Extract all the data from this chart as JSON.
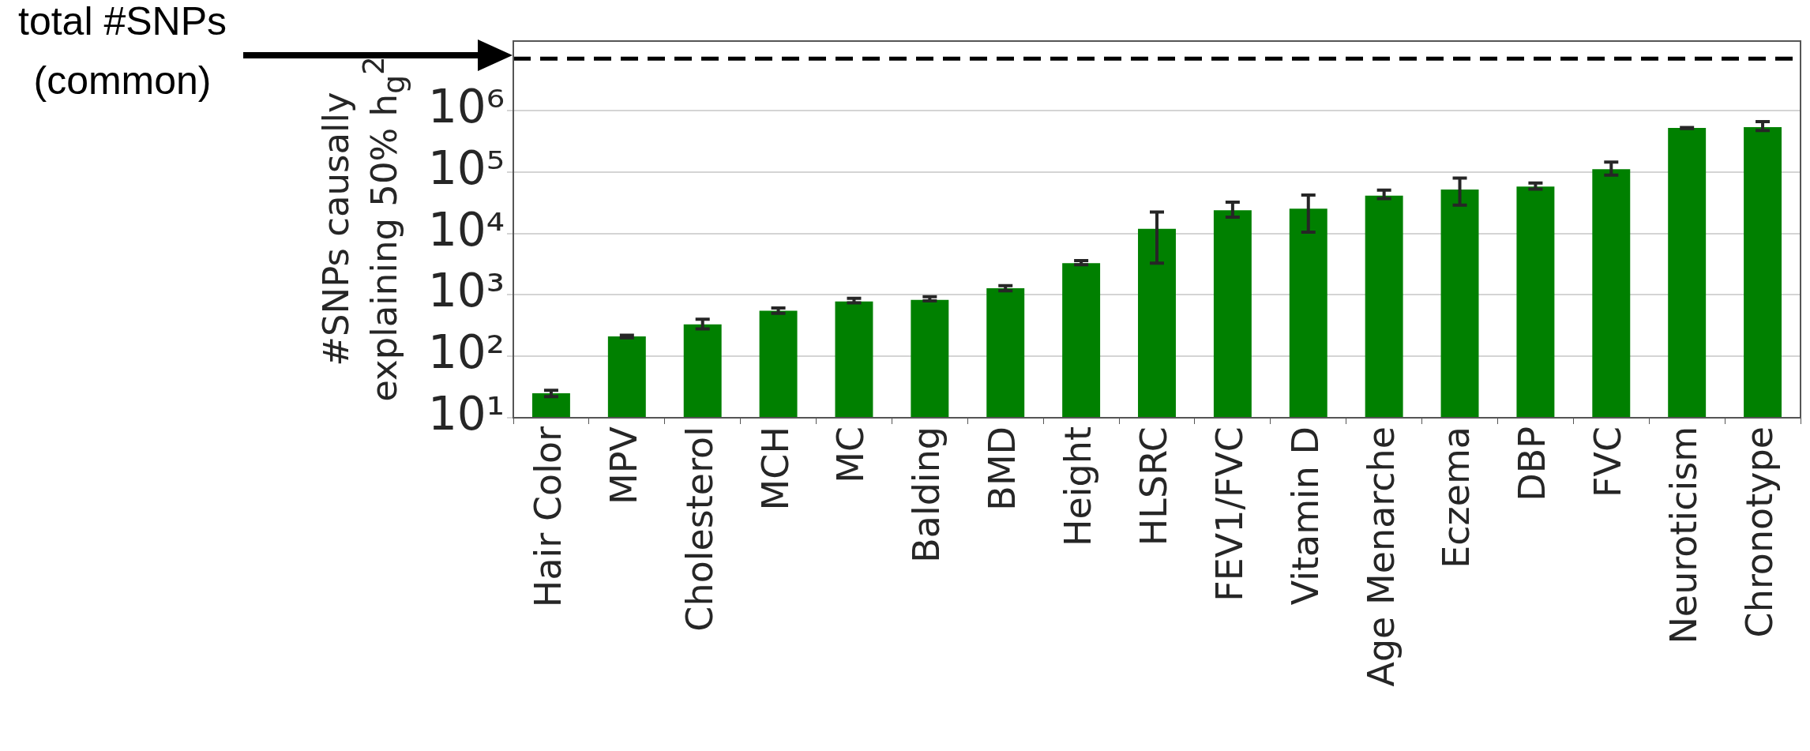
{
  "chart_data": {
    "type": "bar",
    "ylabel": "#SNPs causally\nexplaining 50% h$_{g}$$^{2}$",
    "categories": [
      "Hair Color",
      "MPV",
      "Cholesterol",
      "MCH",
      "MC",
      "Balding",
      "BMD",
      "Height",
      "HLSRC",
      "FEV1/FVC",
      "Vitamin D",
      "Age Menarche",
      "Eczema",
      "DBP",
      "FVC",
      "Neuroticism",
      "Chronotype"
    ],
    "values": [
      25,
      210,
      330,
      550,
      780,
      830,
      1280,
      3280,
      11900,
      23900,
      25300,
      41200,
      51600,
      57800,
      111000,
      519000,
      538000
    ],
    "errors": [
      [
        22,
        28
      ],
      [
        200,
        220
      ],
      [
        280,
        400
      ],
      [
        500,
        610
      ],
      [
        740,
        880
      ],
      [
        800,
        930
      ],
      [
        1160,
        1410
      ],
      [
        3100,
        3600
      ],
      [
        3270,
        22200
      ],
      [
        18400,
        32300
      ],
      [
        10500,
        42000
      ],
      [
        36800,
        50700
      ],
      [
        28800,
        79400
      ],
      [
        52600,
        65900
      ],
      [
        88900,
        145000
      ],
      [
        510000,
        530000
      ],
      [
        472000,
        662000
      ]
    ],
    "color": "#008000",
    "log": true,
    "ylim": [
      10,
      13500000
    ],
    "yticks": [
      {
        "value": 10,
        "label": "10¹"
      },
      {
        "value": 100,
        "label": "10²"
      },
      {
        "value": 1000,
        "label": "10³"
      },
      {
        "value": 10000,
        "label": "10⁴"
      },
      {
        "value": 100000,
        "label": "10⁵"
      },
      {
        "value": 1000000,
        "label": "10⁶"
      }
    ],
    "grid": "y",
    "ref_lines": [
      {
        "axis": "y",
        "value": 7000000,
        "label": "total #SNPs\n(common)",
        "color": "#000000",
        "line_style": "dashed"
      }
    ]
  }
}
